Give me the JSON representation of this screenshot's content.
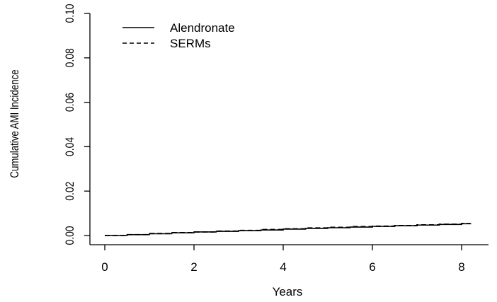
{
  "chart_data": {
    "type": "line",
    "title": "",
    "xlabel": "Years",
    "ylabel": "Cumulative AMI Incidence",
    "xlim": [
      0,
      8.3
    ],
    "ylim": [
      0,
      0.1
    ],
    "x_ticks": [
      "0",
      "2",
      "4",
      "6",
      "8"
    ],
    "y_ticks": [
      "0.00",
      "0.02",
      "0.04",
      "0.06",
      "0.08",
      "0.10"
    ],
    "grid": false,
    "legend_position": "top-left",
    "series": [
      {
        "name": "Alendronate",
        "line_style": "solid",
        "color": "#000000",
        "x": [
          0,
          0.5,
          1,
          1.5,
          2,
          2.5,
          3,
          3.5,
          4,
          4.5,
          5,
          5.5,
          6,
          6.5,
          7,
          7.5,
          8,
          8.2
        ],
        "y": [
          0,
          0.0004,
          0.0008,
          0.0012,
          0.0016,
          0.0019,
          0.0022,
          0.0025,
          0.0029,
          0.0032,
          0.0035,
          0.0038,
          0.0041,
          0.0044,
          0.0047,
          0.005,
          0.0053,
          0.0054
        ]
      },
      {
        "name": "SERMs",
        "line_style": "dashed",
        "color": "#000000",
        "x": [
          0,
          0.5,
          1,
          1.5,
          2,
          2.5,
          3,
          3.5,
          4,
          4.5,
          5,
          5.5,
          6,
          6.5,
          7,
          7.5,
          8,
          8.2
        ],
        "y": [
          0,
          0.0004,
          0.0009,
          0.0013,
          0.0016,
          0.002,
          0.0023,
          0.0027,
          0.003,
          0.0034,
          0.0037,
          0.004,
          0.0042,
          0.0045,
          0.0048,
          0.0051,
          0.0054,
          0.0055
        ]
      }
    ]
  }
}
